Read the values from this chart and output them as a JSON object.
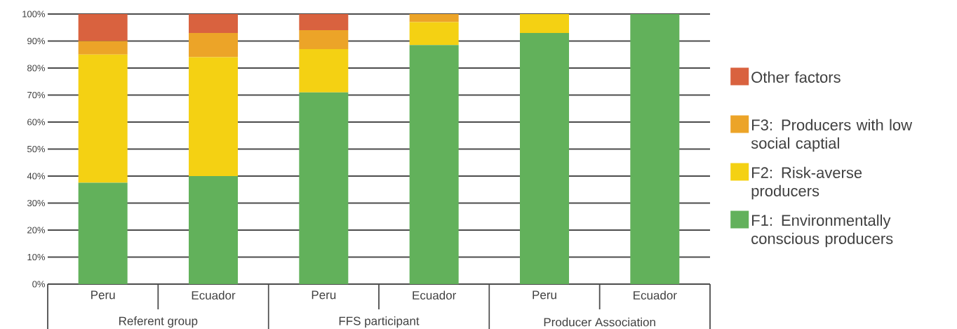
{
  "chart_data": {
    "type": "bar",
    "stacked": true,
    "categories": [
      "Peru",
      "Ecuador",
      "Peru",
      "Ecuador",
      "Peru",
      "Ecuador"
    ],
    "series": [
      {
        "name": "F1: Environmentally conscious producers",
        "color": "#62b15b",
        "values": [
          37.5,
          40,
          71,
          88.5,
          93,
          100
        ]
      },
      {
        "name": "F2: Risk-averse producers",
        "color": "#f4d113",
        "values": [
          47.5,
          44,
          16,
          8.5,
          7,
          0
        ]
      },
      {
        "name": "F3: Producers with low social captial",
        "color": "#eca428",
        "values": [
          5,
          9,
          7,
          3,
          0,
          0
        ]
      },
      {
        "name": "Other factors",
        "color": "#d9623f",
        "values": [
          10,
          7,
          6,
          0,
          0,
          0
        ]
      }
    ],
    "ylim": [
      0,
      100
    ],
    "yticks": [
      {
        "value": 0,
        "label": "0%"
      },
      {
        "value": 10,
        "label": "10%"
      },
      {
        "value": 20,
        "label": "20%"
      },
      {
        "value": 30,
        "label": "30%"
      },
      {
        "value": 40,
        "label": "40%"
      },
      {
        "value": 50,
        "label": "50%"
      },
      {
        "value": 60,
        "label": "60%"
      },
      {
        "value": 70,
        "label": "70%"
      },
      {
        "value": 80,
        "label": "80%"
      },
      {
        "value": 90,
        "label": "90%"
      },
      {
        "value": 100,
        "label": "100%"
      }
    ],
    "grid": "y",
    "legend": "right",
    "annotations": [
      "Referent group",
      "FFS participant",
      "Producer Association"
    ]
  }
}
